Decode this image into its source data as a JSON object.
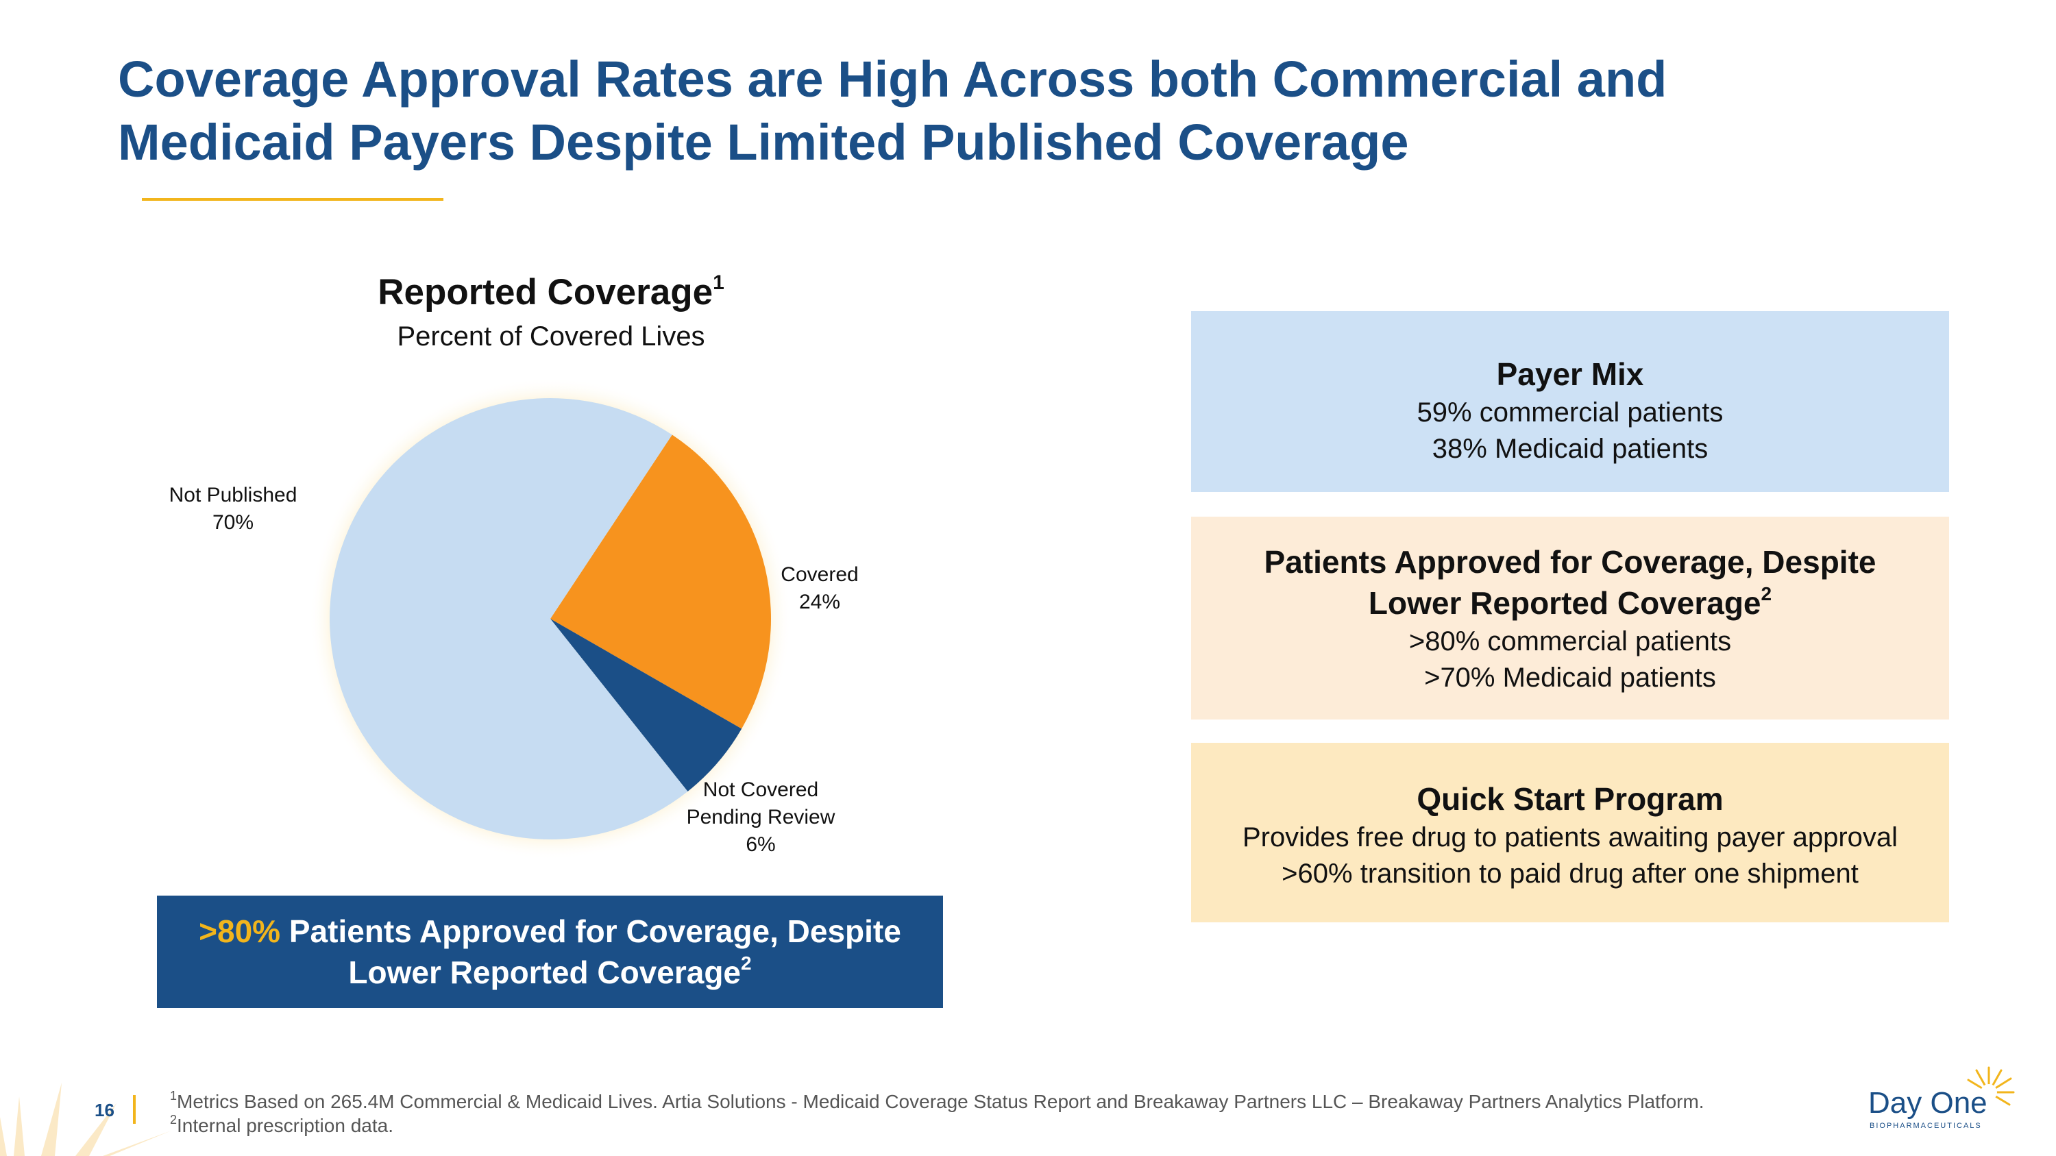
{
  "header": {
    "title_line1": "Coverage Approval Rates are High Across both Commercial and",
    "title_line2": "Medicaid Payers Despite Limited Published Coverage"
  },
  "chart": {
    "heading": "Reported Coverage",
    "heading_sup": "1",
    "subheading": "Percent of Covered Lives"
  },
  "chart_data": {
    "type": "pie",
    "title": "Reported Coverage",
    "subtitle": "Percent of Covered Lives",
    "slices": [
      {
        "label_line1": "Not Published",
        "label_line2": "",
        "value_label": "70%",
        "value": 70,
        "color": "#c6dcf2"
      },
      {
        "label_line1": "Covered",
        "label_line2": "",
        "value_label": "24%",
        "value": 24,
        "color": "#f7931e"
      },
      {
        "label_line1": "Not Covered",
        "label_line2": "Pending Review",
        "value_label": "6%",
        "value": 6,
        "color": "#1b4f87"
      }
    ]
  },
  "callout": {
    "highlight": ">80%",
    "text_line1": " Patients Approved for Coverage, Despite",
    "text_line2": "Lower Reported Coverage",
    "sup": "2"
  },
  "boxes": {
    "payer_mix": {
      "title": "Payer Mix",
      "line1": "59% commercial patients",
      "line2": "38% Medicaid patients"
    },
    "approved": {
      "title_line1": "Patients Approved for Coverage, Despite",
      "title_line2": "Lower Reported Coverage",
      "title_sup": "2",
      "line1": ">80% commercial patients",
      "line2": ">70% Medicaid patients"
    },
    "quick_start": {
      "title": "Quick Start Program",
      "line1": "Provides free drug to patients awaiting payer approval",
      "line2": ">60% transition to paid drug after one shipment"
    }
  },
  "footer": {
    "page_number": "16",
    "footnote1_sup": "1",
    "footnote1": "Metrics Based on 265.4M Commercial & Medicaid Lives. Artia Solutions - Medicaid Coverage Status Report and Breakaway Partners LLC – Breakaway Partners Analytics Platform.",
    "footnote2_sup": "2",
    "footnote2": "Internal prescription data.",
    "logo_name": "Day One",
    "logo_sub": "BIOPHARMACEUTICALS"
  },
  "colors": {
    "brand_blue": "#1b4f87",
    "accent_gold": "#f2b51c",
    "orange": "#f7931e",
    "light_blue": "#c6dcf2"
  }
}
